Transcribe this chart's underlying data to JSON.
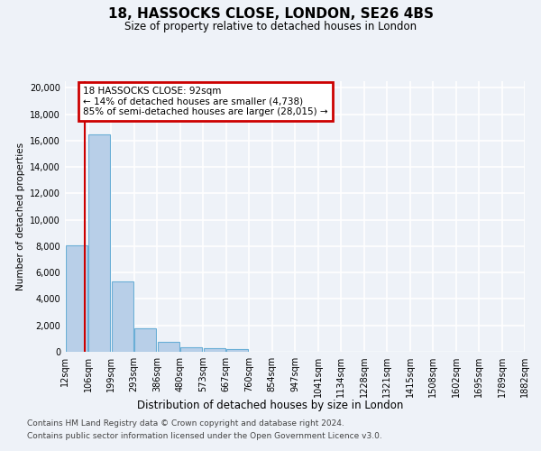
{
  "title": "18, HASSOCKS CLOSE, LONDON, SE26 4BS",
  "subtitle": "Size of property relative to detached houses in London",
  "xlabel": "Distribution of detached houses by size in London",
  "ylabel": "Number of detached properties",
  "bin_labels": [
    "12sqm",
    "106sqm",
    "199sqm",
    "293sqm",
    "386sqm",
    "480sqm",
    "573sqm",
    "667sqm",
    "760sqm",
    "854sqm",
    "947sqm",
    "1041sqm",
    "1134sqm",
    "1228sqm",
    "1321sqm",
    "1415sqm",
    "1508sqm",
    "1602sqm",
    "1695sqm",
    "1789sqm",
    "1882sqm"
  ],
  "bar_heights": [
    8050,
    16500,
    5300,
    1800,
    750,
    350,
    290,
    215,
    0,
    0,
    0,
    0,
    0,
    0,
    0,
    0,
    0,
    0,
    0,
    0
  ],
  "bar_color": "#b8cfe8",
  "bar_edge_color": "#6aaed6",
  "ylim": [
    0,
    20500
  ],
  "yticks": [
    0,
    2000,
    4000,
    6000,
    8000,
    10000,
    12000,
    14000,
    16000,
    18000,
    20000
  ],
  "property_line_color": "#cc0000",
  "annotation_text": "18 HASSOCKS CLOSE: 92sqm\n← 14% of detached houses are smaller (4,738)\n85% of semi-detached houses are larger (28,015) →",
  "annotation_box_facecolor": "#ffffff",
  "annotation_box_edgecolor": "#cc0000",
  "footer_line1": "Contains HM Land Registry data © Crown copyright and database right 2024.",
  "footer_line2": "Contains public sector information licensed under the Open Government Licence v3.0.",
  "background_color": "#eef2f8",
  "grid_color": "#ffffff"
}
